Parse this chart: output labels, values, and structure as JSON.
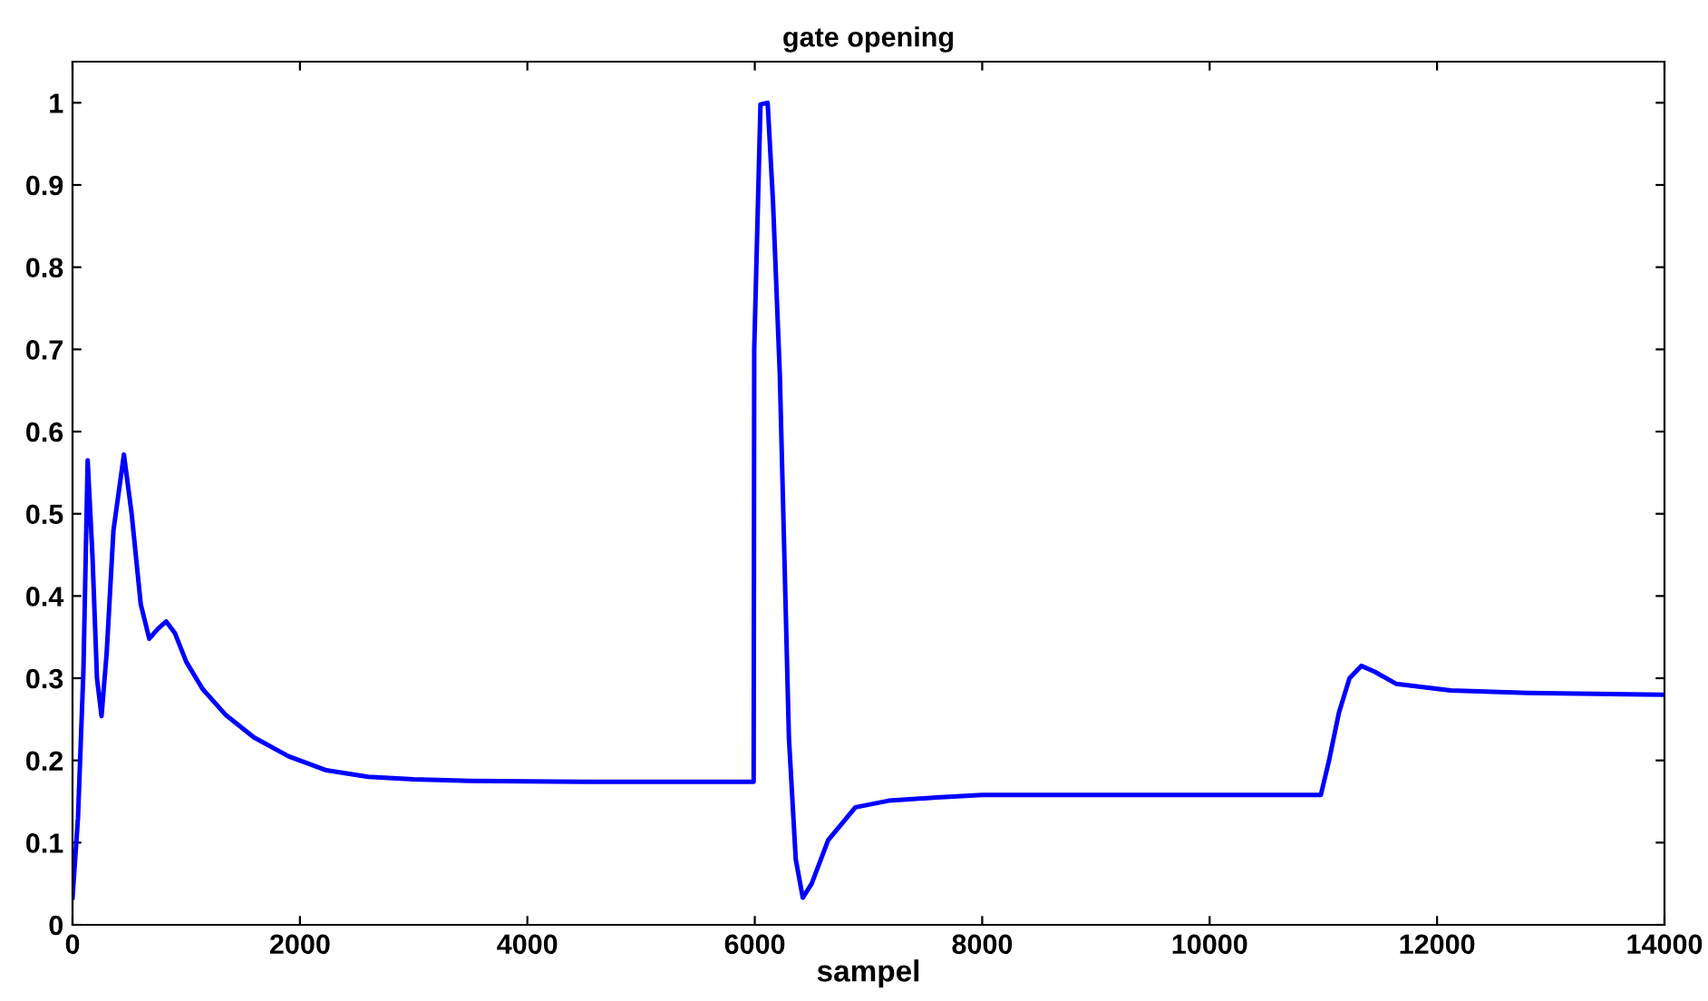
{
  "chart_data": {
    "type": "line",
    "title": "gate opening",
    "xlabel": "sampel",
    "xlim": [
      0,
      14000
    ],
    "ylim": [
      0,
      1.05
    ],
    "xticks": [
      0,
      2000,
      4000,
      6000,
      8000,
      10000,
      12000,
      14000
    ],
    "yticks": [
      0,
      0.1,
      0.2,
      0.3,
      0.4,
      0.5,
      0.6,
      0.7,
      0.8,
      0.9,
      1
    ],
    "grid": false,
    "legend": false,
    "line_style": "solid",
    "marker": "none",
    "series": [
      {
        "color": "#0000ff",
        "x": [
          0,
          48,
          96,
          133,
          175,
          215,
          255,
          300,
          360,
          452,
          520,
          600,
          675,
          750,
          824,
          900,
          1000,
          1143,
          1350,
          1595,
          1900,
          2233,
          2600,
          3000,
          3500,
          4500,
          5500,
          5990,
          5995,
          6050,
          6113,
          6160,
          6220,
          6300,
          6360,
          6422,
          6500,
          6645,
          6885,
          7177,
          7600,
          8000,
          9000,
          10000,
          10978,
          11050,
          11137,
          11230,
          11334,
          11450,
          11643,
          12121,
          12800,
          14000
        ],
        "values": [
          0.033,
          0.13,
          0.31,
          0.565,
          0.45,
          0.3,
          0.254,
          0.33,
          0.48,
          0.572,
          0.5,
          0.39,
          0.348,
          0.36,
          0.369,
          0.355,
          0.32,
          0.287,
          0.255,
          0.228,
          0.205,
          0.188,
          0.18,
          0.177,
          0.175,
          0.174,
          0.174,
          0.174,
          0.7,
          0.998,
          1.0,
          0.88,
          0.67,
          0.228,
          0.08,
          0.033,
          0.05,
          0.103,
          0.143,
          0.151,
          0.155,
          0.158,
          0.158,
          0.158,
          0.158,
          0.2,
          0.258,
          0.3,
          0.315,
          0.308,
          0.293,
          0.285,
          0.282,
          0.28
        ]
      }
    ]
  }
}
